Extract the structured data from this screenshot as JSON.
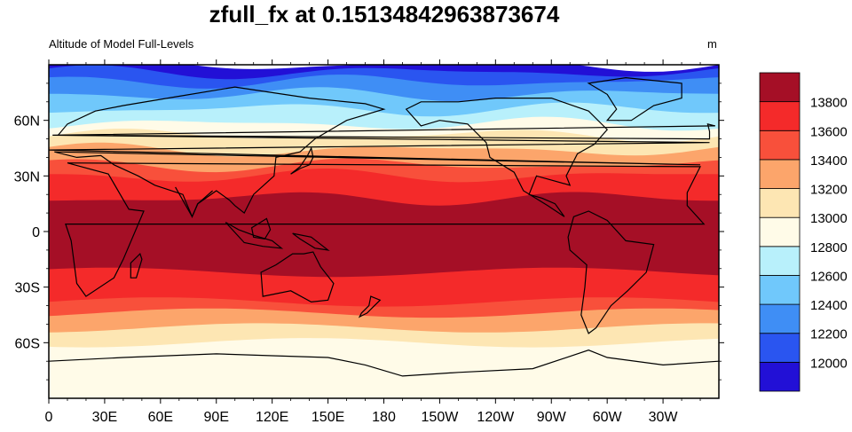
{
  "title": "zfull_fx at 0.15134842963873674",
  "subtitle_left": "Altitude of Model Full-Levels",
  "units": "m",
  "map": {
    "projection": "cylindrical-equidistant",
    "center_lon": 180,
    "lon_ticks": [
      {
        "lon": 0,
        "label": "0"
      },
      {
        "lon": 30,
        "label": "30E"
      },
      {
        "lon": 60,
        "label": "60E"
      },
      {
        "lon": 90,
        "label": "90E"
      },
      {
        "lon": 120,
        "label": "120E"
      },
      {
        "lon": 150,
        "label": "150E"
      },
      {
        "lon": 180,
        "label": "180"
      },
      {
        "lon": 210,
        "label": "150W"
      },
      {
        "lon": 240,
        "label": "120W"
      },
      {
        "lon": 270,
        "label": "90W"
      },
      {
        "lon": 300,
        "label": "60W"
      },
      {
        "lon": 330,
        "label": "30W"
      }
    ],
    "lat_ticks": [
      {
        "lat": 60,
        "label": "60N"
      },
      {
        "lat": 30,
        "label": "30N"
      },
      {
        "lat": 0,
        "label": "0"
      },
      {
        "lat": -30,
        "label": "30S"
      },
      {
        "lat": -60,
        "label": "60S"
      }
    ],
    "lon_range": [
      0,
      360
    ],
    "lat_range": [
      -90,
      90
    ]
  },
  "colorbar": {
    "levels": [
      "12000",
      "12200",
      "12400",
      "12600",
      "12800",
      "13000",
      "13200",
      "13400",
      "13600",
      "13800"
    ],
    "colors": [
      "#2210d6",
      "#2a55f0",
      "#3f8ef5",
      "#70c8fb",
      "#b8f0fb",
      "#fffbe8",
      "#fde6b3",
      "#fca56b",
      "#f8503b",
      "#f42a2a",
      "#a50f26"
    ]
  },
  "field_bands": [
    {
      "level_index": 10,
      "color": "#a50f26",
      "lat_top": 18,
      "lat_bottom": -22
    },
    {
      "level_index": 9,
      "color": "#f42a2a",
      "lat_top": 30,
      "lat_bottom": -38
    },
    {
      "level_index": 8,
      "color": "#f8503b",
      "lat_top": 36,
      "lat_bottom": -44
    },
    {
      "level_index": 7,
      "color": "#fca56b",
      "lat_top": 44,
      "lat_bottom": -52
    },
    {
      "level_index": 6,
      "color": "#fde6b3",
      "lat_top": 52,
      "lat_bottom": -60
    },
    {
      "level_index": 5,
      "color": "#fffbe8",
      "lat_top": 58,
      "lat_bottom": -90
    },
    {
      "level_index": 4,
      "color": "#b8f0fb",
      "lat_top": 66,
      "lat_bottom": -90
    },
    {
      "level_index": 3,
      "color": "#70c8fb",
      "lat_top": 74,
      "lat_bottom": -90
    },
    {
      "level_index": 2,
      "color": "#3f8ef5",
      "lat_top": 81,
      "lat_bottom": -90
    },
    {
      "level_index": 1,
      "color": "#2a55f0",
      "lat_top": 86,
      "lat_bottom": -90
    },
    {
      "level_index": 0,
      "color": "#2210d6",
      "lat_top": 90,
      "lat_bottom": -90
    }
  ]
}
